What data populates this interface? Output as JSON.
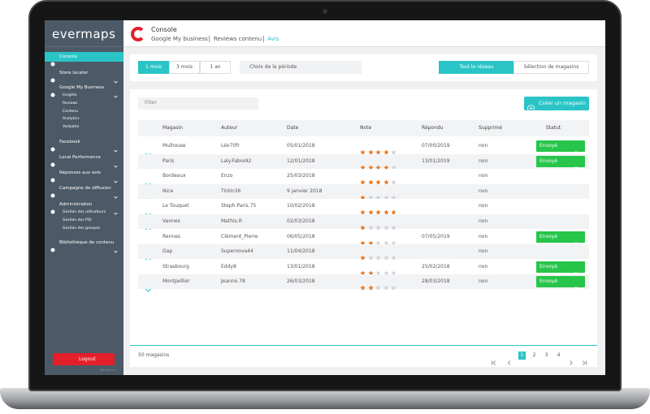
{
  "sidebar": {
    "logo": "evermaps",
    "menu": [
      {
        "label": "Console",
        "active": true
      },
      {
        "label": "Store locator"
      },
      {
        "label": "Google My Business",
        "children": [
          "Insights",
          "Reviews",
          "Contenu",
          "Analytics",
          "Verbatim"
        ]
      },
      {
        "label": "Facebook"
      },
      {
        "label": "Local Performance"
      },
      {
        "label": "Réponses aux avis"
      },
      {
        "label": "Campagne de diffusion"
      },
      {
        "label": "Administration",
        "children": [
          "Gestion des utilisateurs",
          "Gestion des POI",
          "Gestion des groupes"
        ]
      },
      {
        "label": "Bibliothèque de contenu"
      }
    ],
    "logout": "Logout",
    "version": "Version 2.0"
  },
  "header": {
    "title": "Console",
    "breadcrumb": [
      "Google My business",
      "Reviews contenu",
      "Avis"
    ]
  },
  "filters": {
    "periods": [
      "1 mois",
      "3 mois",
      "1 an"
    ],
    "period_picker": "Choix de la période",
    "scope": [
      "Tout le réseau",
      "Sélection de magasins"
    ]
  },
  "table": {
    "filter_placeholder": "Filter",
    "create_button": "Créer un magasin",
    "columns": [
      "Magasin",
      "Auteur",
      "Date",
      "Note",
      "Répondu",
      "Supprimé",
      "Statut"
    ],
    "rows": [
      [
        "Mulhouse",
        "Léo70fr",
        "05/01/2018",
        4,
        "07/00/2019",
        "non",
        "Envoyé"
      ],
      [
        "Paris",
        "Laly.Fabre92",
        "12/01/2018",
        4,
        "13/01/2019",
        "non",
        "Envoyé"
      ],
      [
        "Bordeaux",
        "Enzo",
        "25/03/2018",
        4,
        null,
        "non",
        null
      ],
      [
        "Nice",
        "Tintin36",
        "9 janvier 2018",
        1,
        null,
        "non",
        null
      ],
      [
        "Le Touquet",
        "Steph.Paris.75",
        "10/02/2018",
        5,
        null,
        "non",
        null
      ],
      [
        "Vannes",
        "Mathis.R",
        "02/03/2018",
        1,
        null,
        "non",
        null
      ],
      [
        "Rennes",
        "Clément_Pierre",
        "06/05/2018",
        2,
        "07/05/2019",
        "non",
        "Envoyé"
      ],
      [
        "Gap",
        "Supernova44",
        "11/04/2018",
        1,
        null,
        "non",
        null
      ],
      [
        "Strasbourg",
        "Eddy8",
        "13/01/2018",
        2,
        "25/02/2018",
        "non",
        "Envoyé"
      ],
      [
        "Montpellier",
        "Jeanno.78",
        "26/03/2018",
        2,
        "28/03/2018",
        "non",
        "Envoyé"
      ]
    ],
    "count": "50 magasins",
    "pages": [
      1,
      2,
      3,
      4
    ],
    "current_page": 1
  }
}
